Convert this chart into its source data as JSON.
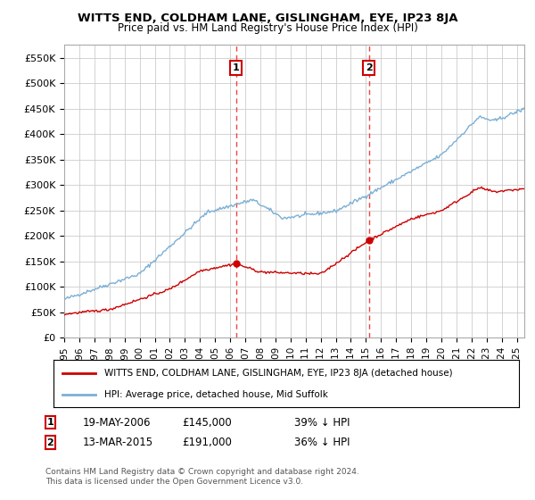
{
  "title": "WITTS END, COLDHAM LANE, GISLINGHAM, EYE, IP23 8JA",
  "subtitle": "Price paid vs. HM Land Registry's House Price Index (HPI)",
  "ylim": [
    0,
    575000
  ],
  "yticks": [
    0,
    50000,
    100000,
    150000,
    200000,
    250000,
    300000,
    350000,
    400000,
    450000,
    500000,
    550000
  ],
  "legend_entry1": "WITTS END, COLDHAM LANE, GISLINGHAM, EYE, IP23 8JA (detached house)",
  "legend_entry2": "HPI: Average price, detached house, Mid Suffolk",
  "sale1_date": "19-MAY-2006",
  "sale1_price": "£145,000",
  "sale1_pct": "39% ↓ HPI",
  "sale1_year": 2006.38,
  "sale1_value": 145000,
  "sale2_date": "13-MAR-2015",
  "sale2_price": "£191,000",
  "sale2_pct": "36% ↓ HPI",
  "sale2_year": 2015.19,
  "sale2_value": 191000,
  "footer1": "Contains HM Land Registry data © Crown copyright and database right 2024.",
  "footer2": "This data is licensed under the Open Government Licence v3.0.",
  "bg_color": "#ffffff",
  "grid_color": "#cccccc",
  "hpi_color": "#7bafd4",
  "price_color": "#cc0000",
  "dashed_color": "#ee4444"
}
